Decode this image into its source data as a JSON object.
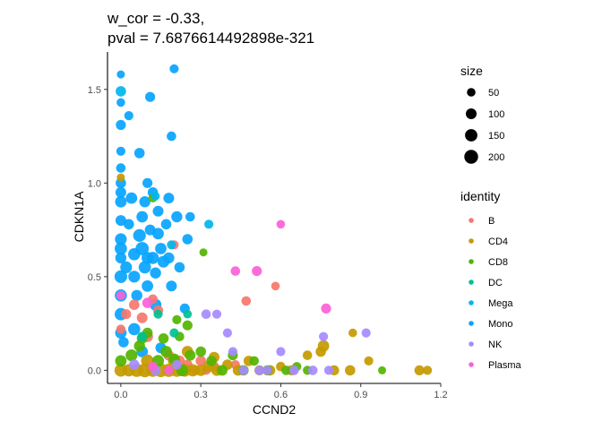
{
  "chart_data": {
    "type": "scatter",
    "title_lines": [
      "w_cor = -0.33,",
      "pval = 7.6876614492898e-321"
    ],
    "xlabel": "CCND2",
    "ylabel": "CDKN1A",
    "xlim": [
      -0.05,
      1.2
    ],
    "ylim": [
      -0.07,
      1.7
    ],
    "x_ticks": [
      0.0,
      0.3,
      0.6,
      0.9,
      1.2
    ],
    "x_tick_labels": [
      "0.0",
      "0.3",
      "0.6",
      "0.9",
      "1.2"
    ],
    "y_ticks": [
      0.0,
      0.5,
      1.0,
      1.5
    ],
    "y_tick_labels": [
      "0.0",
      "0.5",
      "1.0",
      "1.5"
    ],
    "grid": false,
    "legend_position": "right",
    "size_legend": {
      "title": "size",
      "values": [
        50,
        100,
        150,
        200
      ],
      "labels": [
        "50",
        "100",
        "150",
        "200"
      ]
    },
    "color_legend": {
      "title": "identity",
      "entries": [
        {
          "label": "B",
          "color": "#F8766D"
        },
        {
          "label": "CD4",
          "color": "#C49A00"
        },
        {
          "label": "CD8",
          "color": "#53B400"
        },
        {
          "label": "DC",
          "color": "#00C094"
        },
        {
          "label": "Mega",
          "color": "#00B6EB"
        },
        {
          "label": "Mono",
          "color": "#06A4FF"
        },
        {
          "label": "NK",
          "color": "#A58AFF"
        },
        {
          "label": "Plasma",
          "color": "#FB61D7"
        }
      ]
    },
    "series": [
      {
        "name": "Mono",
        "points": [
          [
            0.0,
            1.58,
            40
          ],
          [
            0.0,
            1.31,
            80
          ],
          [
            0.0,
            1.17,
            60
          ],
          [
            0.0,
            1.08,
            70
          ],
          [
            0.0,
            1.0,
            90
          ],
          [
            0.0,
            0.9,
            120
          ],
          [
            0.0,
            0.8,
            100
          ],
          [
            0.0,
            0.7,
            130
          ],
          [
            0.0,
            0.6,
            110
          ],
          [
            0.0,
            0.5,
            160
          ],
          [
            0.0,
            0.4,
            140
          ],
          [
            0.0,
            0.3,
            150
          ],
          [
            0.0,
            0.2,
            120
          ],
          [
            0.01,
            0.15,
            90
          ],
          [
            0.0,
            1.43,
            50
          ],
          [
            0.0,
            0.95,
            100
          ],
          [
            0.0,
            0.65,
            150
          ],
          [
            0.02,
            0.55,
            130
          ],
          [
            0.03,
            0.78,
            90
          ],
          [
            0.04,
            0.92,
            120
          ],
          [
            0.05,
            0.62,
            140
          ],
          [
            0.05,
            0.5,
            130
          ],
          [
            0.06,
            0.4,
            110
          ],
          [
            0.07,
            0.72,
            160
          ],
          [
            0.07,
            1.16,
            90
          ],
          [
            0.08,
            0.65,
            180
          ],
          [
            0.08,
            0.82,
            120
          ],
          [
            0.09,
            0.55,
            150
          ],
          [
            0.09,
            0.9,
            110
          ],
          [
            0.1,
            0.6,
            130
          ],
          [
            0.1,
            0.45,
            120
          ],
          [
            0.11,
            1.46,
            80
          ],
          [
            0.11,
            0.75,
            100
          ],
          [
            0.12,
            0.95,
            90
          ],
          [
            0.12,
            0.6,
            140
          ],
          [
            0.13,
            0.52,
            110
          ],
          [
            0.14,
            0.85,
            100
          ],
          [
            0.15,
            0.65,
            120
          ],
          [
            0.16,
            0.58,
            130
          ],
          [
            0.17,
            0.78,
            90
          ],
          [
            0.18,
            0.6,
            110
          ],
          [
            0.19,
            0.45,
            100
          ],
          [
            0.2,
            1.61,
            60
          ],
          [
            0.19,
            1.25,
            70
          ],
          [
            0.21,
            0.82,
            110
          ],
          [
            0.22,
            0.55,
            90
          ],
          [
            0.24,
            0.33,
            80
          ],
          [
            0.25,
            0.7,
            90
          ],
          [
            0.26,
            0.82,
            70
          ],
          [
            0.13,
            0.35,
            130
          ],
          [
            0.08,
            0.1,
            120
          ],
          [
            0.15,
            0.12,
            100
          ],
          [
            0.05,
            0.22,
            140
          ],
          [
            0.03,
            1.36,
            60
          ],
          [
            0.14,
            0.73,
            120
          ],
          [
            0.18,
            0.92,
            100
          ],
          [
            0.1,
            1.0,
            80
          ]
        ]
      },
      {
        "name": "B",
        "points": [
          [
            0.0,
            0.22,
            60
          ],
          [
            0.02,
            0.3,
            80
          ],
          [
            0.05,
            0.35,
            90
          ],
          [
            0.08,
            0.28,
            100
          ],
          [
            0.1,
            0.18,
            110
          ],
          [
            0.12,
            0.38,
            70
          ],
          [
            0.14,
            0.32,
            80
          ],
          [
            0.18,
            0.08,
            90
          ],
          [
            0.22,
            0.05,
            100
          ],
          [
            0.25,
            0.03,
            80
          ],
          [
            0.28,
            0.0,
            70
          ],
          [
            0.3,
            0.05,
            90
          ],
          [
            0.32,
            0.0,
            60
          ],
          [
            0.35,
            0.02,
            80
          ],
          [
            0.47,
            0.37,
            70
          ],
          [
            0.58,
            0.45,
            50
          ],
          [
            0.43,
            0.03,
            60
          ],
          [
            0.2,
            0.67,
            60
          ]
        ]
      },
      {
        "name": "CD4",
        "points": [
          [
            0.0,
            0.0,
            160
          ],
          [
            0.03,
            0.0,
            150
          ],
          [
            0.06,
            0.0,
            180
          ],
          [
            0.09,
            0.0,
            200
          ],
          [
            0.12,
            0.0,
            170
          ],
          [
            0.15,
            0.0,
            190
          ],
          [
            0.18,
            0.0,
            180
          ],
          [
            0.21,
            0.0,
            170
          ],
          [
            0.24,
            0.0,
            160
          ],
          [
            0.27,
            0.0,
            150
          ],
          [
            0.3,
            0.0,
            120
          ],
          [
            0.33,
            0.02,
            120
          ],
          [
            0.36,
            0.0,
            110
          ],
          [
            0.4,
            0.03,
            90
          ],
          [
            0.44,
            0.0,
            100
          ],
          [
            0.48,
            0.05,
            90
          ],
          [
            0.52,
            0.0,
            80
          ],
          [
            0.56,
            0.0,
            90
          ],
          [
            0.6,
            0.02,
            70
          ],
          [
            0.64,
            0.0,
            80
          ],
          [
            0.7,
            0.08,
            70
          ],
          [
            0.75,
            0.1,
            90
          ],
          [
            0.76,
            0.13,
            120
          ],
          [
            0.8,
            0.0,
            80
          ],
          [
            0.87,
            0.2,
            50
          ],
          [
            0.86,
            0.0,
            90
          ],
          [
            1.12,
            0.0,
            80
          ],
          [
            1.15,
            0.0,
            60
          ],
          [
            0.0,
            1.03,
            40
          ],
          [
            0.93,
            0.05,
            60
          ],
          [
            0.1,
            0.05,
            160
          ],
          [
            0.2,
            0.05,
            150
          ],
          [
            0.25,
            0.1,
            120
          ],
          [
            0.35,
            0.07,
            100
          ]
        ]
      },
      {
        "name": "CD8",
        "points": [
          [
            0.0,
            0.05,
            120
          ],
          [
            0.04,
            0.08,
            130
          ],
          [
            0.07,
            0.13,
            110
          ],
          [
            0.1,
            0.2,
            90
          ],
          [
            0.14,
            0.05,
            130
          ],
          [
            0.17,
            0.1,
            120
          ],
          [
            0.2,
            0.06,
            110
          ],
          [
            0.23,
            0.0,
            130
          ],
          [
            0.26,
            0.08,
            100
          ],
          [
            0.3,
            0.1,
            90
          ],
          [
            0.34,
            0.05,
            90
          ],
          [
            0.38,
            0.0,
            100
          ],
          [
            0.42,
            0.08,
            80
          ],
          [
            0.46,
            0.0,
            90
          ],
          [
            0.5,
            0.05,
            70
          ],
          [
            0.55,
            0.0,
            80
          ],
          [
            0.62,
            0.0,
            70
          ],
          [
            0.66,
            0.02,
            60
          ],
          [
            0.7,
            0.0,
            60
          ],
          [
            0.31,
            0.63,
            40
          ],
          [
            0.25,
            0.24,
            80
          ],
          [
            0.21,
            0.27,
            60
          ],
          [
            0.98,
            0.0,
            40
          ],
          [
            0.12,
            0.92,
            50
          ],
          [
            0.22,
            0.18,
            70
          ],
          [
            0.16,
            0.17,
            90
          ],
          [
            0.08,
            0.17,
            100
          ]
        ]
      },
      {
        "name": "DC",
        "points": [
          [
            0.14,
            0.3,
            60
          ],
          [
            0.08,
            0.18,
            70
          ],
          [
            0.2,
            0.2,
            60
          ],
          [
            0.25,
            0.3,
            50
          ]
        ]
      },
      {
        "name": "Mega",
        "points": [
          [
            0.0,
            1.49,
            90
          ],
          [
            0.33,
            0.78,
            60
          ],
          [
            0.13,
            0.93,
            50
          ],
          [
            0.19,
            0.67,
            60
          ]
        ]
      },
      {
        "name": "NK",
        "points": [
          [
            0.05,
            0.03,
            90
          ],
          [
            0.13,
            0.0,
            80
          ],
          [
            0.21,
            0.03,
            70
          ],
          [
            0.32,
            0.3,
            70
          ],
          [
            0.36,
            0.3,
            60
          ],
          [
            0.4,
            0.2,
            60
          ],
          [
            0.42,
            0.1,
            60
          ],
          [
            0.46,
            0.0,
            70
          ],
          [
            0.55,
            0.0,
            60
          ],
          [
            0.65,
            0.0,
            70
          ],
          [
            0.72,
            0.0,
            70
          ],
          [
            0.78,
            0.0,
            60
          ],
          [
            0.76,
            0.18,
            60
          ],
          [
            0.92,
            0.2,
            60
          ],
          [
            0.52,
            0.0,
            70
          ],
          [
            0.6,
            0.1,
            60
          ]
        ]
      },
      {
        "name": "Plasma",
        "points": [
          [
            0.0,
            0.4,
            60
          ],
          [
            0.1,
            0.36,
            90
          ],
          [
            0.12,
            0.02,
            70
          ],
          [
            0.43,
            0.53,
            70
          ],
          [
            0.51,
            0.53,
            80
          ],
          [
            0.6,
            0.78,
            50
          ],
          [
            0.77,
            0.33,
            80
          ],
          [
            0.18,
            0.0,
            60
          ]
        ]
      }
    ]
  }
}
